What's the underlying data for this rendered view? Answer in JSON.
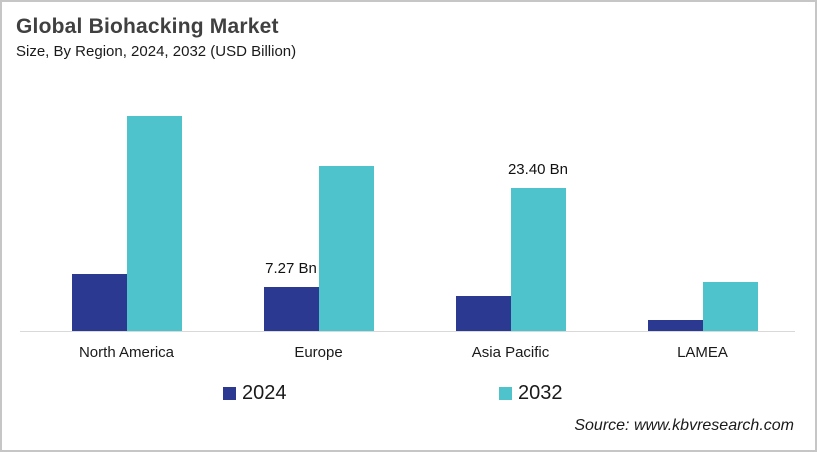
{
  "header": {
    "title": "Global Biohacking Market",
    "subtitle": "Size, By Region, 2024, 2032 (USD Billion)"
  },
  "footer": {
    "source": "Source: www.kbvresearch.com"
  },
  "colors": {
    "bar_2024": "#2b3990",
    "bar_2032": "#4ec3cc",
    "axis_line": "#d9d9d9",
    "title_text": "#404040"
  },
  "legend": {
    "items": [
      {
        "label": "2024",
        "color": "#2b3990"
      },
      {
        "label": "2032",
        "color": "#4ec3cc"
      }
    ]
  },
  "chart_data": {
    "type": "bar",
    "title": "Global Biohacking Market",
    "subtitle": "Size, By Region, 2024, 2032 (USD Billion)",
    "unit": "USD Billion",
    "categories": [
      "North America",
      "Europe",
      "Asia Pacific",
      "LAMEA"
    ],
    "series": [
      {
        "name": "2024",
        "color": "#2b3990",
        "values": [
          9.4,
          7.27,
          5.8,
          1.8
        ]
      },
      {
        "name": "2032",
        "color": "#4ec3cc",
        "values": [
          35.3,
          27.0,
          23.4,
          8.1
        ]
      }
    ],
    "data_labels": [
      {
        "series": "2024",
        "category": "Europe",
        "text": "7.27 Bn"
      },
      {
        "series": "2032",
        "category": "Asia Pacific",
        "text": "23.40 Bn"
      }
    ],
    "ylim": [
      0,
      38
    ],
    "grid": false,
    "value_axis_visible": false,
    "legend_position": "bottom"
  }
}
